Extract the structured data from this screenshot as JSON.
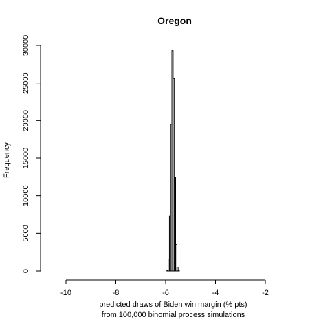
{
  "chart_data": {
    "type": "bar",
    "title": "Oregon",
    "xlabel_line1": "predicted draws of Biden win margin (% pts)",
    "xlabel_line2": "from 100,000 binomial process simulations",
    "ylabel": "Frequency",
    "xlim": [
      -10,
      -2
    ],
    "ylim": [
      0,
      30000
    ],
    "x_ticks": [
      -10,
      -8,
      -6,
      -4,
      -2
    ],
    "x_tick_labels": [
      "-10",
      "-8",
      "-6",
      "-4",
      "-2"
    ],
    "y_ticks": [
      0,
      5000,
      10000,
      15000,
      20000,
      25000,
      30000
    ],
    "y_tick_labels": [
      "0",
      "5000",
      "10000",
      "15000",
      "20000",
      "25000",
      "30000"
    ],
    "bin_width": 0.05,
    "bins": [
      {
        "x0": -5.95,
        "count": 100
      },
      {
        "x0": -5.9,
        "count": 1600
      },
      {
        "x0": -5.85,
        "count": 7300
      },
      {
        "x0": -5.8,
        "count": 19500
      },
      {
        "x0": -5.75,
        "count": 29300
      },
      {
        "x0": -5.7,
        "count": 25600
      },
      {
        "x0": -5.65,
        "count": 12400
      },
      {
        "x0": -5.6,
        "count": 3500
      },
      {
        "x0": -5.55,
        "count": 500
      },
      {
        "x0": -5.5,
        "count": 100
      }
    ],
    "grid": false,
    "bar_fill": "#ffffff",
    "bar_stroke": "#000000"
  }
}
